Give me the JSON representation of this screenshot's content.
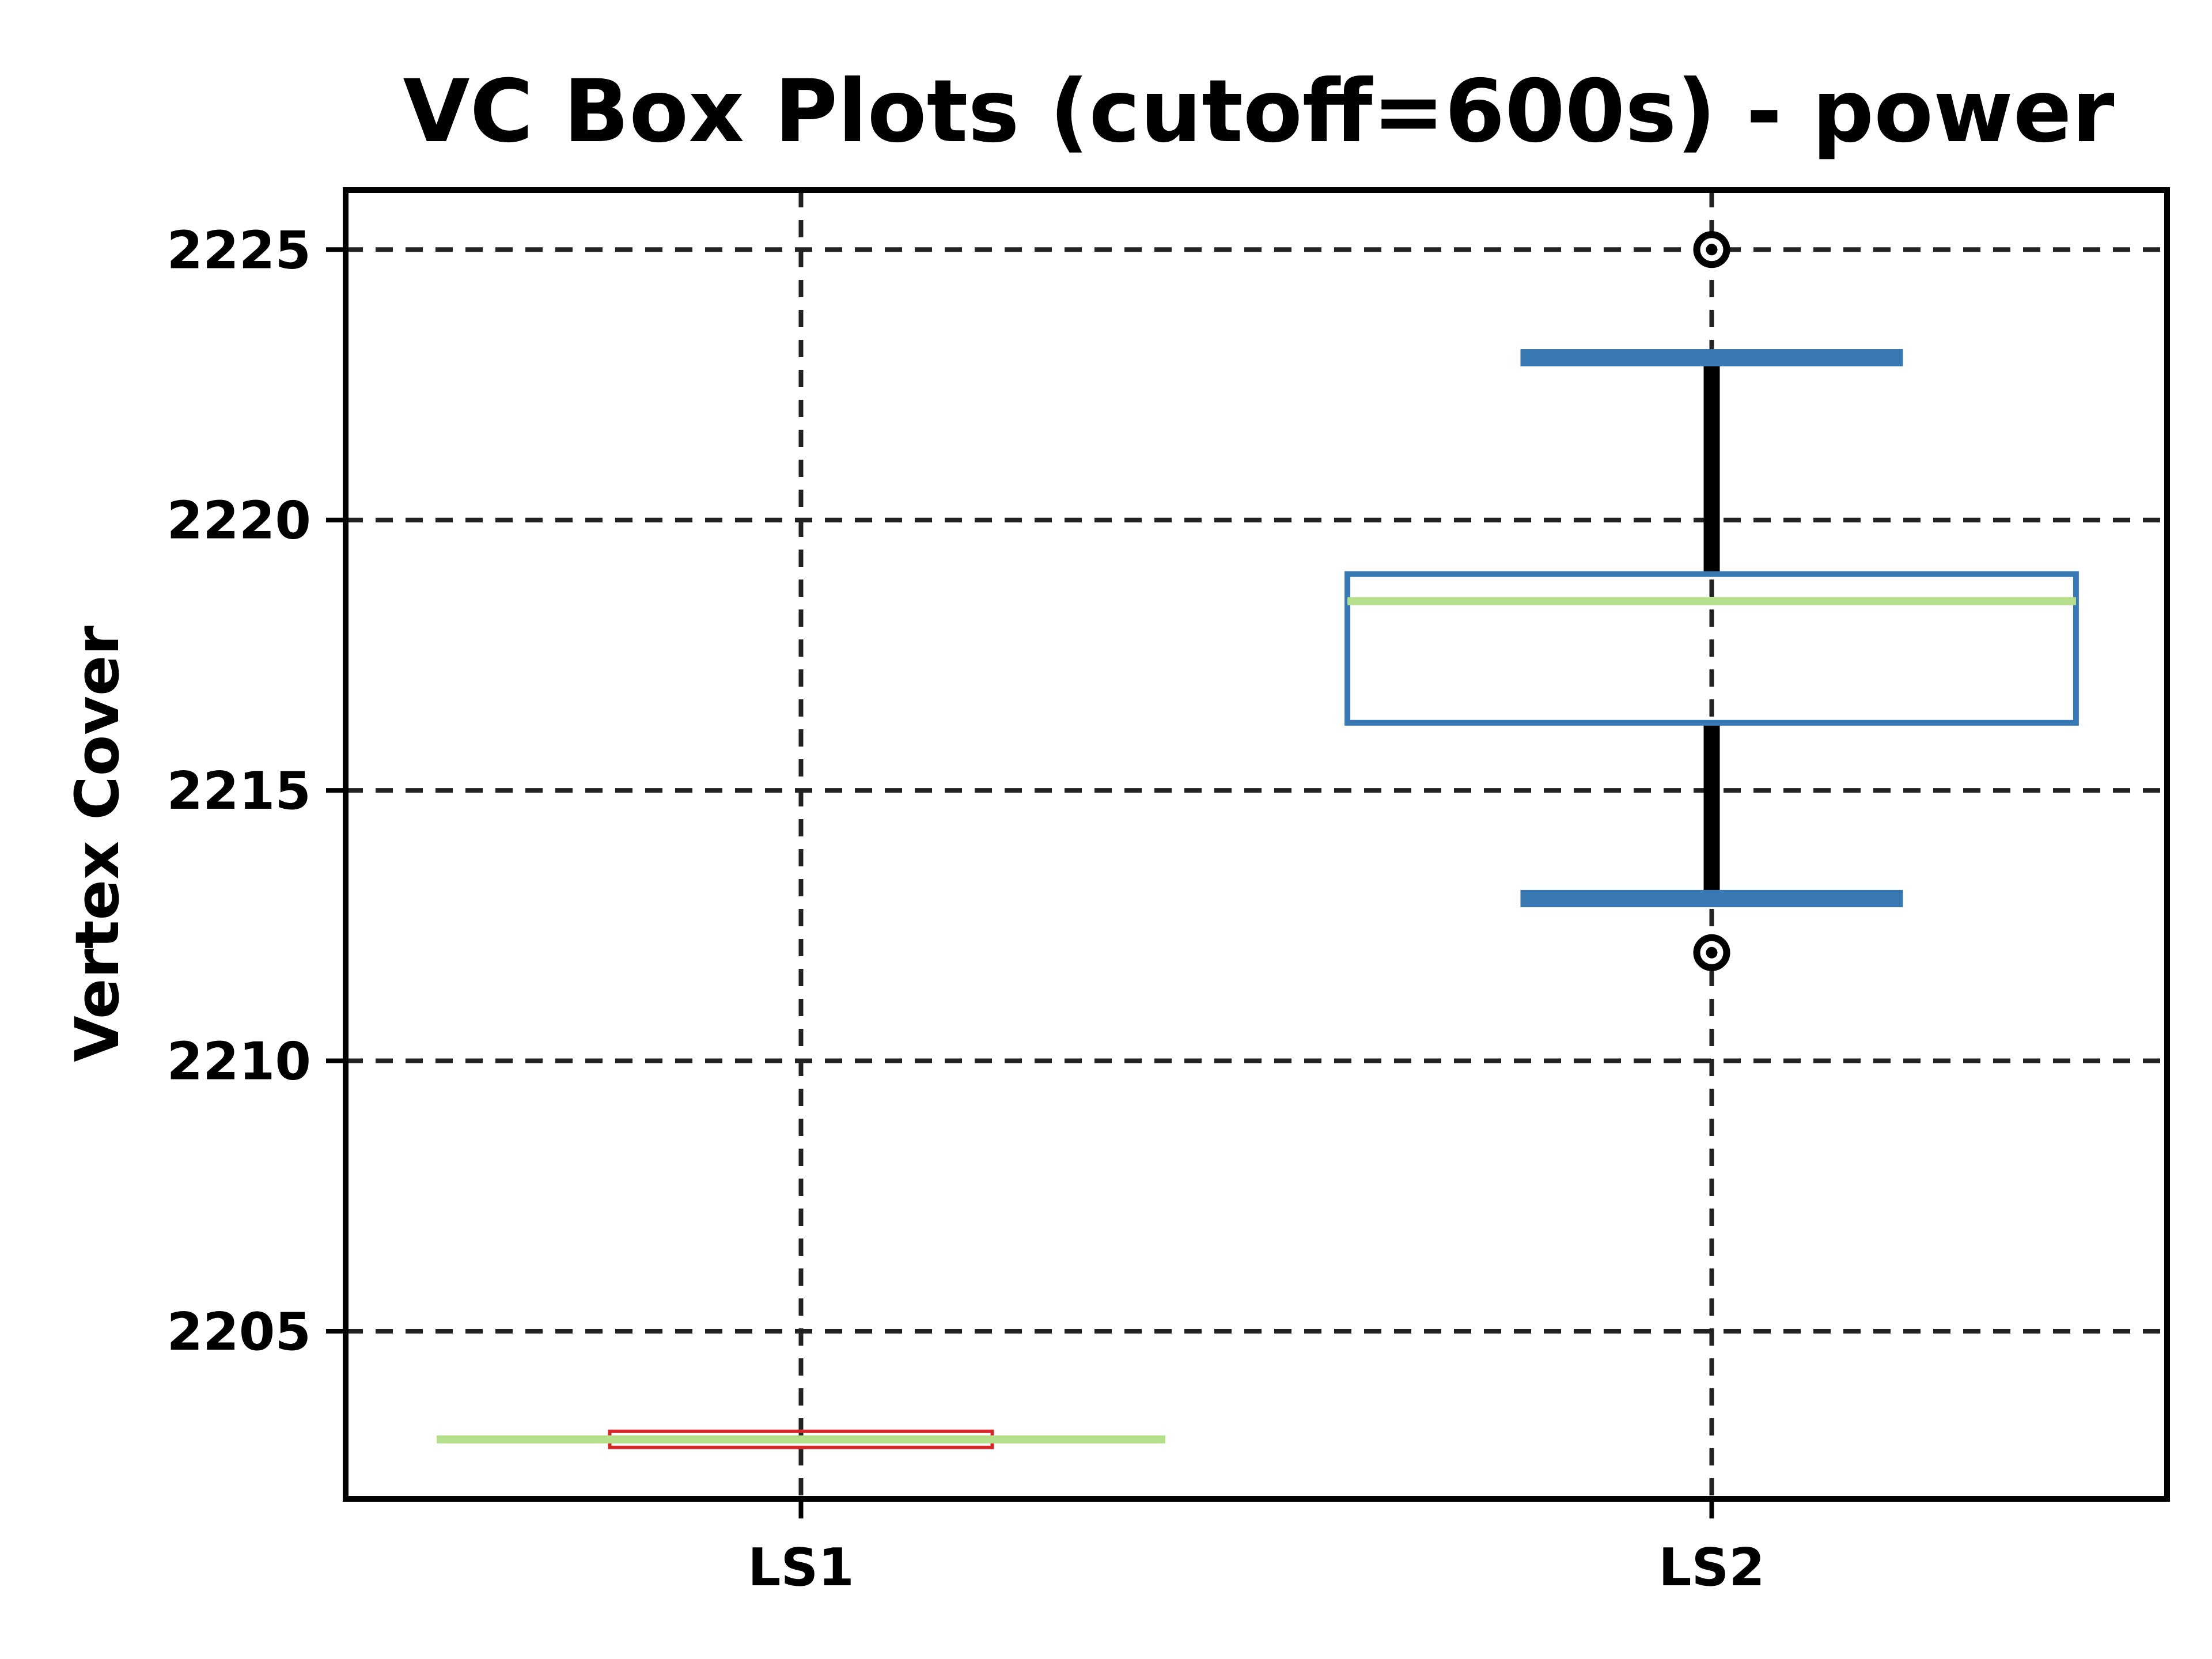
{
  "chart_data": {
    "type": "box",
    "title": "VC Box Plots (cutoff=600s) - power",
    "xlabel": "",
    "ylabel": "Vertex Cover",
    "categories": [
      "LS1",
      "LS2"
    ],
    "ylim": [
      2201.9,
      2226.1
    ],
    "yticks": [
      2205,
      2210,
      2215,
      2220,
      2225
    ],
    "grid": true,
    "boxes": [
      {
        "name": "LS1",
        "whislo": 2203,
        "q1": 2203,
        "med": 2203,
        "q3": 2203,
        "whishi": 2203,
        "fliers": []
      },
      {
        "name": "LS2",
        "whislo": 2213,
        "q1": 2216.25,
        "med": 2218.5,
        "q3": 2219,
        "whishi": 2223,
        "fliers": [
          2212,
          2225
        ]
      }
    ],
    "colors": {
      "box": "#3a7ab4",
      "whisker": "#000000",
      "cap": "#3a7ab4",
      "median": "#b6df8c",
      "degenerate_box": "#d62728",
      "grid": "#222222",
      "axes": "#000000"
    }
  }
}
